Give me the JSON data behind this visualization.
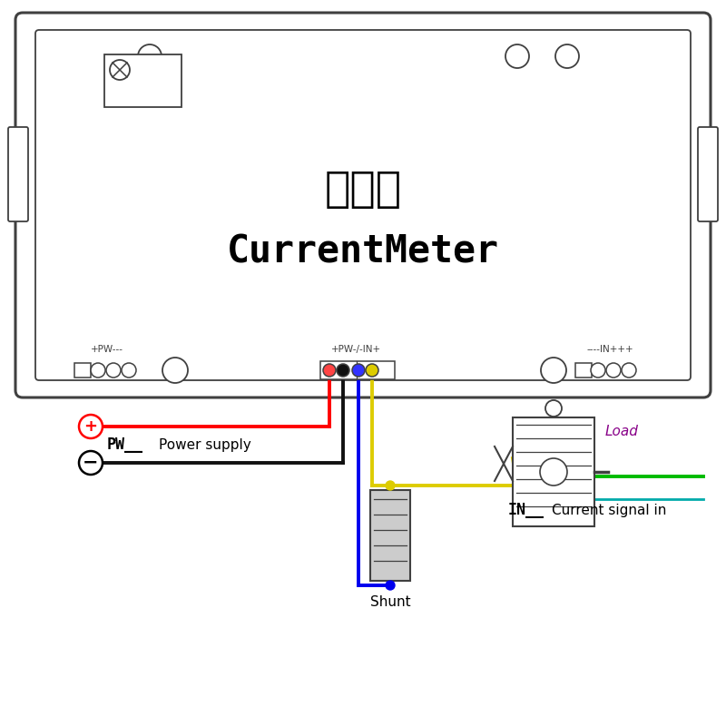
{
  "bg_color": "#ffffff",
  "line_color": "#404040",
  "title_chinese": "电流表",
  "title_english": "CurrentMeter",
  "label_pw_left": "+PW---",
  "label_pw_mid": "+PW-/-IN+",
  "label_in_right": "----IN+++",
  "label_pw": "PW__",
  "label_power_supply": "Power supply",
  "label_in": "IN__",
  "label_current": "Current signal in",
  "label_shunt": "Shunt",
  "label_load": "Load",
  "wire_red": "#ff0000",
  "wire_black": "#111111",
  "wire_blue": "#0000ee",
  "wire_yellow": "#ddcc00",
  "wire_green": "#00bb00",
  "wire_cyan": "#00aaaa"
}
